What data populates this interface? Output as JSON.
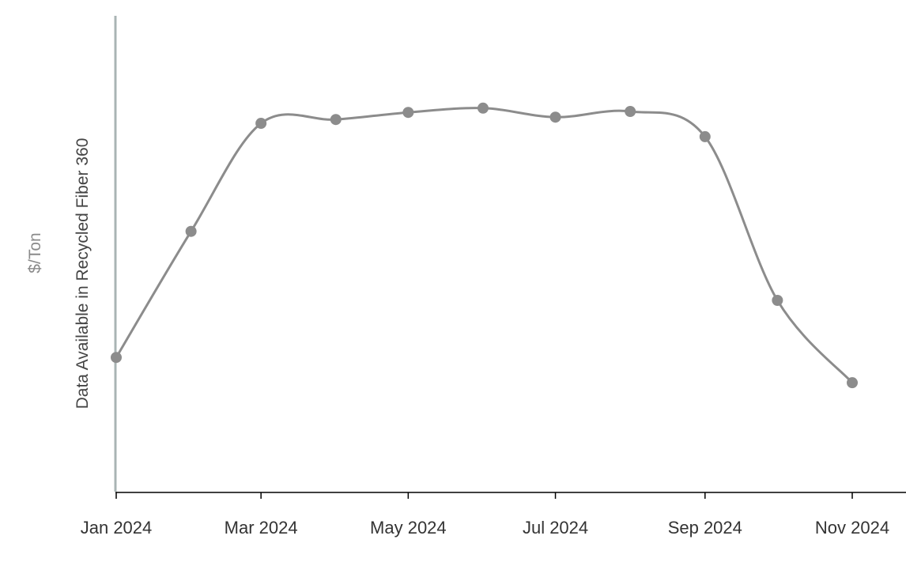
{
  "chart_data": {
    "type": "line",
    "title": "",
    "ylabel": "$/Ton",
    "y_note": "Data Available in Recycled Fiber 360",
    "xlabel": "",
    "x": [
      "2024-01-01",
      "2024-02-01",
      "2024-03-01",
      "2024-04-01",
      "2024-05-01",
      "2024-06-01",
      "2024-07-01",
      "2024-08-01",
      "2024-09-01",
      "2024-10-01",
      "2024-11-01"
    ],
    "x_tick_labels": [
      "Jan 2024",
      "Mar 2024",
      "May 2024",
      "Jul 2024",
      "Sep 2024",
      "Nov 2024"
    ],
    "x_tick_dates": [
      "2024-01-01",
      "2024-03-01",
      "2024-05-01",
      "2024-07-01",
      "2024-09-01",
      "2024-11-01"
    ],
    "xlim": [
      "2024-01-01",
      "2024-11-30"
    ],
    "series": [
      {
        "values": [
          28.2,
          54.7,
          77.4,
          78.2,
          79.7,
          80.6,
          78.7,
          79.9,
          74.6,
          40.2,
          22.9
        ]
      }
    ],
    "ylim": [
      0,
      100
    ],
    "y_ticks_shown": false,
    "grid": false,
    "legend": "none",
    "colors": {
      "line": "#8c8c8c",
      "y_axis": "#a9b4b4",
      "x_axis": "#000000"
    }
  }
}
